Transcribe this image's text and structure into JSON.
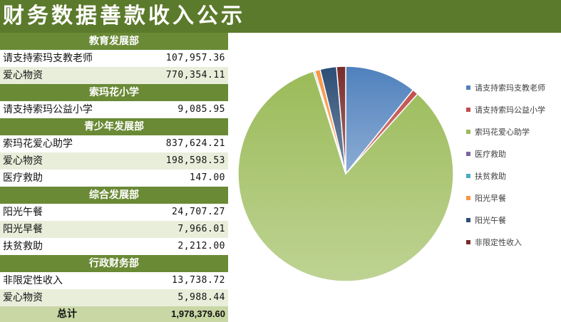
{
  "title": "财务数据善款收入公示",
  "sections": [
    {
      "header": "教育发展部",
      "rows": [
        {
          "label": "请支持索玛支教老师",
          "value": "107,957.36"
        },
        {
          "label": "爱心物资",
          "value": "770,354.11"
        }
      ]
    },
    {
      "header": "索玛花小学",
      "rows": [
        {
          "label": "请支持索玛公益小学",
          "value": "9,085.95"
        }
      ]
    },
    {
      "header": "青少年发展部",
      "rows": [
        {
          "label": "索玛花爱心助学",
          "value": "837,624.21"
        },
        {
          "label": "爱心物资",
          "value": "198,598.53"
        },
        {
          "label": "医疗救助",
          "value": "147.00"
        }
      ]
    },
    {
      "header": "综合发展部",
      "rows": [
        {
          "label": "阳光午餐",
          "value": "24,707.27"
        },
        {
          "label": "阳光早餐",
          "value": "7,966.01"
        },
        {
          "label": "扶贫救助",
          "value": "2,212.00"
        }
      ]
    },
    {
      "header": "行政财务部",
      "rows": [
        {
          "label": "非限定性收入",
          "value": "13,738.72"
        },
        {
          "label": "爱心物资",
          "value": "5,988.44"
        }
      ]
    }
  ],
  "total": {
    "label": "总计",
    "value": "1,978,379.60"
  },
  "chart_data": {
    "type": "pie",
    "categories": [
      "请支持索玛支教老师",
      "请支持索玛公益小学",
      "索玛花爱心助学",
      "医疗救助",
      "扶贫救助",
      "阳光早餐",
      "阳光午餐",
      "非限定性收入"
    ],
    "values": [
      107957.36,
      9085.95,
      837624.21,
      147.0,
      2212.0,
      7966.01,
      24707.27,
      13738.72
    ],
    "colors": [
      "#4f81bd",
      "#c0504d",
      "#9bbb59",
      "#8064a2",
      "#4bacc6",
      "#f79646",
      "#2c4d75",
      "#772c2a"
    ],
    "legend_position": "right",
    "start_angle_deg": 0,
    "direction": "clockwise"
  }
}
